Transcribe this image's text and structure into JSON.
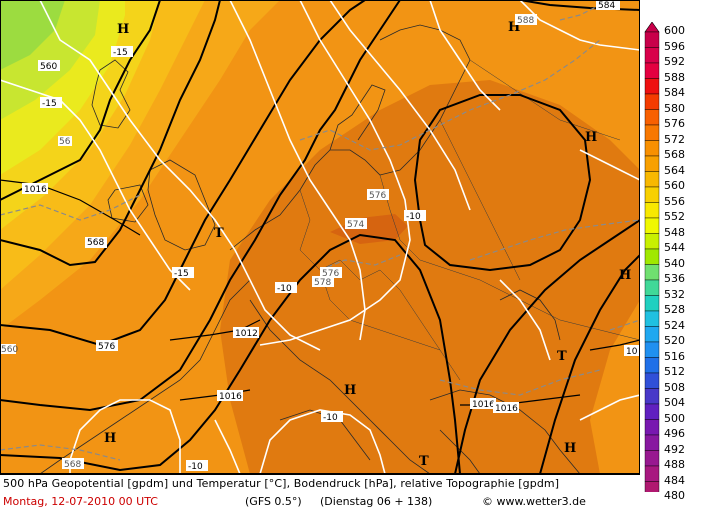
{
  "footer": {
    "title": "500 hPa Geopotential [gpdm] und Temperatur [°C], Bodendruck [hPa], relative Topographie [gpdm]",
    "date": "Montag, 12-07-2010  00 UTC",
    "model": "(GFS 0.5°)",
    "run": "(Dienstag 06 + 138)",
    "site": "© www.wetter3.de"
  },
  "legend": {
    "labels": [
      "600",
      "596",
      "592",
      "588",
      "584",
      "580",
      "576",
      "572",
      "568",
      "564",
      "560",
      "556",
      "552",
      "548",
      "544",
      "540",
      "536",
      "532",
      "528",
      "524",
      "520",
      "516",
      "512",
      "508",
      "504",
      "500",
      "496",
      "492",
      "488",
      "484",
      "480"
    ],
    "colors": [
      "#c8004a",
      "#d8004a",
      "#e40040",
      "#ee1010",
      "#f43c00",
      "#f86000",
      "#f87800",
      "#f89000",
      "#f8a000",
      "#f8b800",
      "#f8d000",
      "#f8e800",
      "#f0f800",
      "#c8f000",
      "#a0e800",
      "#70e070",
      "#40d898",
      "#20d0c0",
      "#20c0e0",
      "#20a8f0",
      "#2090f0",
      "#2070e8",
      "#3050d8",
      "#4838c8",
      "#6020c0",
      "#7818b0",
      "#8818a0",
      "#981890",
      "#a81880",
      "#b01870"
    ]
  },
  "map_labels": {
    "pressure_high": "H",
    "pressure_low": "T",
    "geo_560": "560",
    "geo_568": "568",
    "geo_576": "576",
    "geo_584": "584",
    "geo_588": "588",
    "temp_m15": "-15",
    "temp_m10": "-10",
    "surf_1012": "1012",
    "surf_1016": "1016",
    "relt_576": "576",
    "relt_578": "578",
    "relt_574": "574"
  }
}
